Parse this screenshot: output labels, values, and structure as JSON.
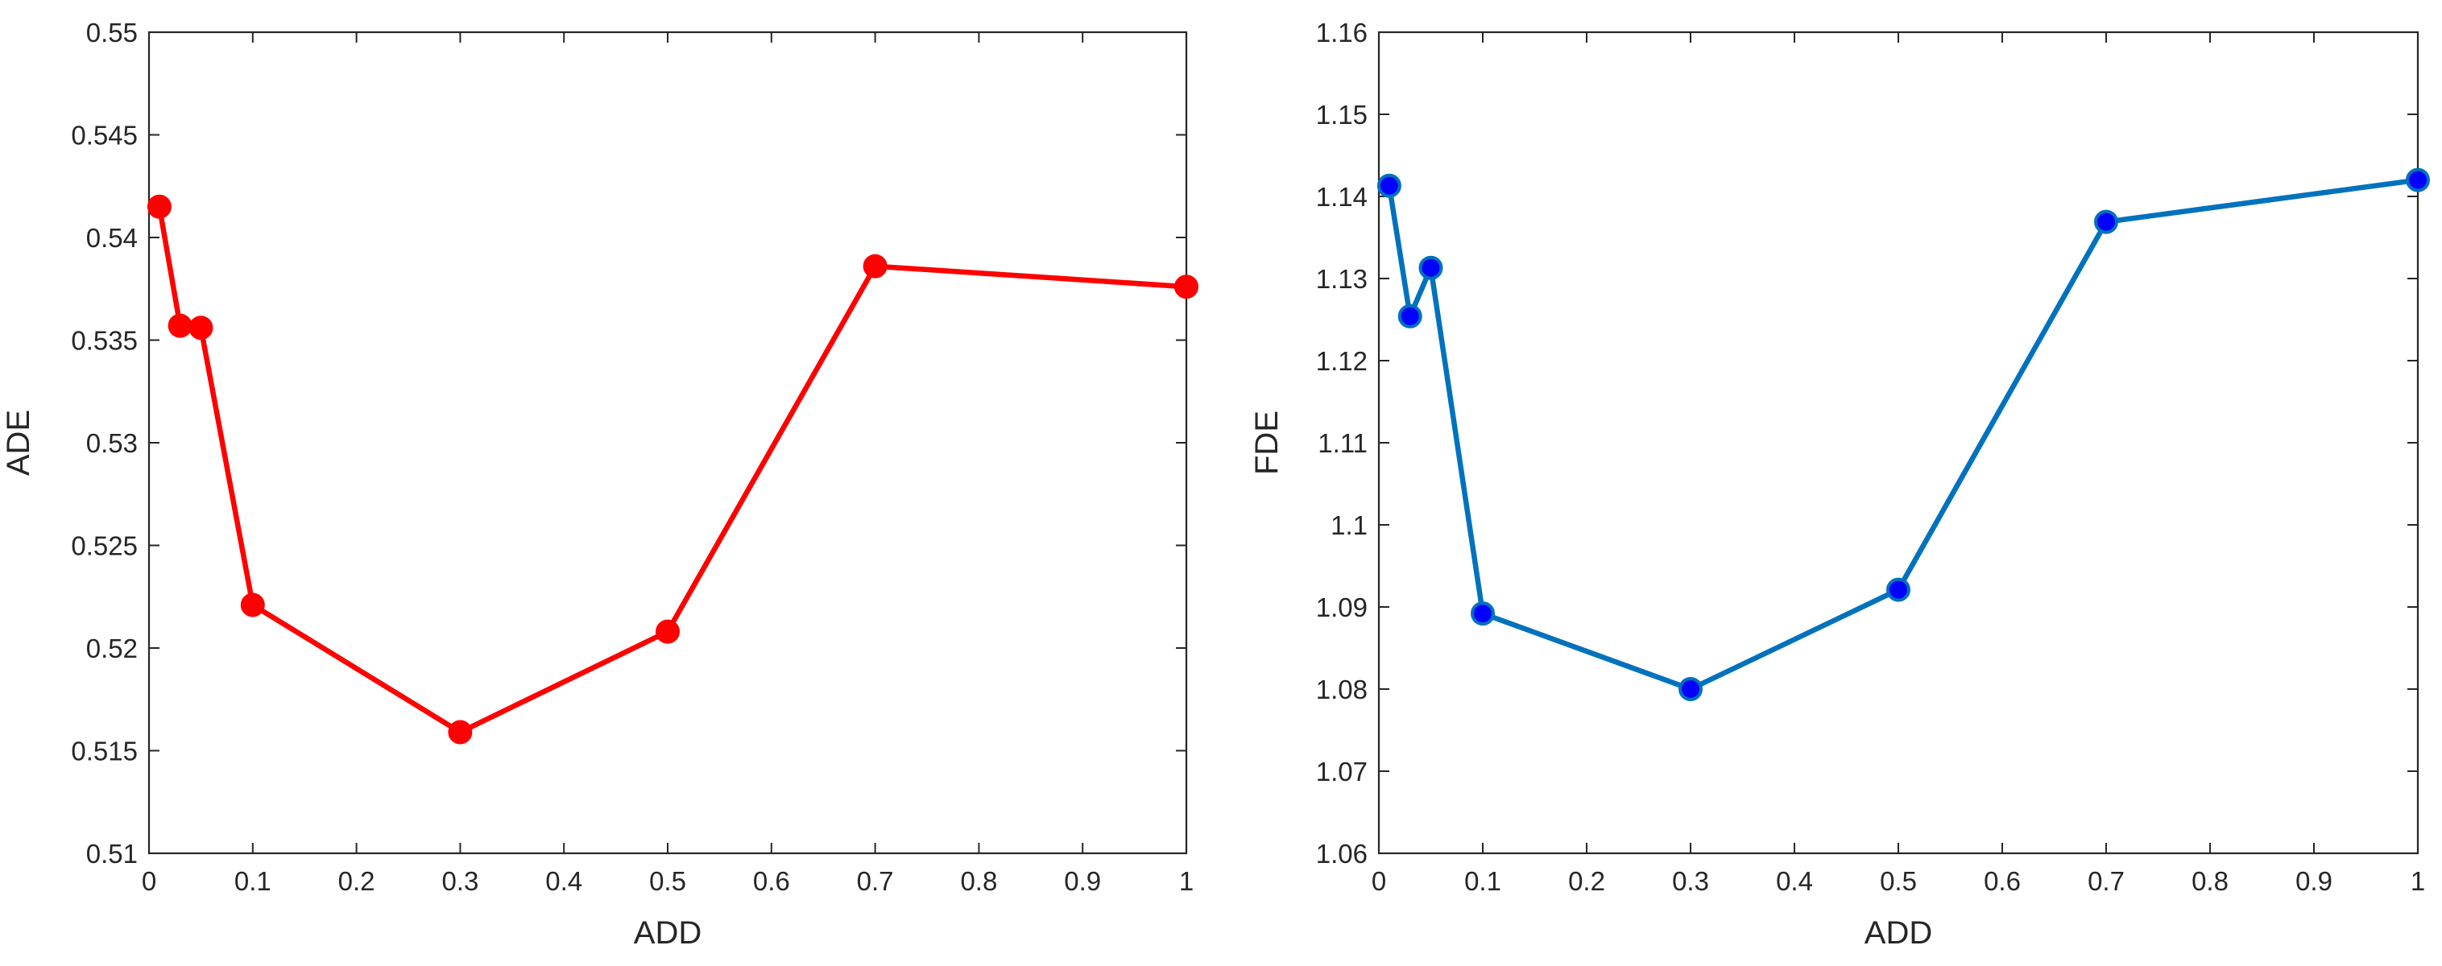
{
  "chart_data": [
    {
      "type": "line",
      "xlabel": "ADD",
      "ylabel": "ADE",
      "xlim": [
        0,
        1
      ],
      "ylim": [
        0.51,
        0.55
      ],
      "xticks": [
        "0",
        "0.1",
        "0.2",
        "0.3",
        "0.4",
        "0.5",
        "0.6",
        "0.7",
        "0.8",
        "0.9",
        "1"
      ],
      "yticks": [
        "0.51",
        "0.515",
        "0.52",
        "0.525",
        "0.53",
        "0.535",
        "0.54",
        "0.545",
        "0.55"
      ],
      "grid": false,
      "series": [
        {
          "x": [
            0.01,
            0.03,
            0.05,
            0.1,
            0.3,
            0.5,
            0.7,
            1.0
          ],
          "y": [
            0.5415,
            0.5357,
            0.5356,
            0.5221,
            0.5159,
            0.5208,
            0.5386,
            0.5376
          ],
          "color": "#ff0000",
          "marker_color": "#ff0000",
          "marker_edge": "#ff0000"
        }
      ]
    },
    {
      "type": "line",
      "xlabel": "ADD",
      "ylabel": "FDE",
      "xlim": [
        0,
        1
      ],
      "ylim": [
        1.06,
        1.16
      ],
      "xticks": [
        "0",
        "0.1",
        "0.2",
        "0.3",
        "0.4",
        "0.5",
        "0.6",
        "0.7",
        "0.8",
        "0.9",
        "1"
      ],
      "yticks": [
        "1.06",
        "1.07",
        "1.08",
        "1.09",
        "1.1",
        "1.11",
        "1.12",
        "1.13",
        "1.14",
        "1.15",
        "1.16"
      ],
      "grid": false,
      "series": [
        {
          "x": [
            0.01,
            0.03,
            0.05,
            0.1,
            0.3,
            0.5,
            0.7,
            1.0
          ],
          "y": [
            1.1413,
            1.1254,
            1.1313,
            1.0892,
            1.08,
            1.0921,
            1.1369,
            1.142
          ],
          "color": "#0072bd",
          "marker_color": "#0000ff",
          "marker_edge": "#0072bd"
        }
      ]
    }
  ]
}
